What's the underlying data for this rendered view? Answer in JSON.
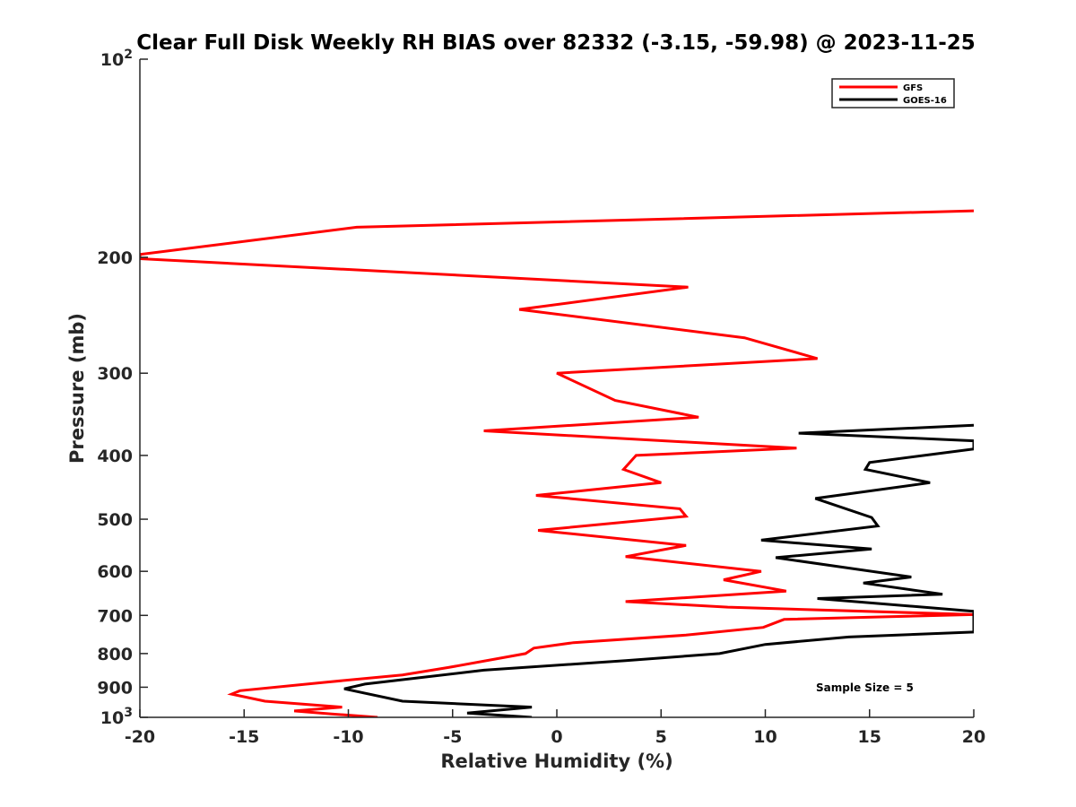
{
  "chart_data": {
    "type": "line",
    "title": "Clear Full Disk Weekly RH BIAS over 82332 (-3.15, -59.98) @ 2023-11-25",
    "xlabel": "Relative Humidity (%)",
    "ylabel": "Pressure (mb)",
    "xlim": [
      -20,
      20
    ],
    "ylim": [
      100,
      1000
    ],
    "y_scale": "log",
    "y_reversed": true,
    "grid": false,
    "legend_position": "top-right",
    "x_ticks": [
      "-20",
      "-15",
      "-10",
      "-5",
      "0",
      "5",
      "10",
      "15",
      "20"
    ],
    "y_ticks": [
      {
        "value": 100,
        "base": "10",
        "exp": "2"
      },
      {
        "value": 200,
        "label": "200"
      },
      {
        "value": 300,
        "label": "300"
      },
      {
        "value": 400,
        "label": "400"
      },
      {
        "value": 500,
        "label": "500"
      },
      {
        "value": 600,
        "label": "600"
      },
      {
        "value": 700,
        "label": "700"
      },
      {
        "value": 800,
        "label": "800"
      },
      {
        "value": 900,
        "label": "900"
      },
      {
        "value": 1000,
        "base": "10",
        "exp": "3"
      }
    ],
    "annotation": "Sample Size = 5",
    "series": [
      {
        "name": "GFS",
        "color": "#ff0000",
        "points": [
          [
            20,
            170
          ],
          [
            -9.6,
            180
          ],
          [
            -20,
            198
          ],
          [
            -20,
            201
          ],
          [
            6.3,
            222
          ],
          [
            -1.8,
            240
          ],
          [
            9,
            265
          ],
          [
            12.5,
            285
          ],
          [
            0,
            300
          ],
          [
            2.8,
            330
          ],
          [
            6.8,
            350
          ],
          [
            -3.5,
            367
          ],
          [
            11.5,
            390
          ],
          [
            3.8,
            400
          ],
          [
            3.2,
            420
          ],
          [
            5,
            440
          ],
          [
            -1,
            460
          ],
          [
            5.9,
            482
          ],
          [
            6.2,
            495
          ],
          [
            -0.9,
            520
          ],
          [
            6.2,
            548
          ],
          [
            3.3,
            570
          ],
          [
            9.8,
            600
          ],
          [
            8,
            618
          ],
          [
            11,
            643
          ],
          [
            3.3,
            667
          ],
          [
            8.2,
            680
          ],
          [
            20,
            698
          ],
          [
            10.9,
            710
          ],
          [
            9.9,
            730
          ],
          [
            6.2,
            750
          ],
          [
            0.8,
            770
          ],
          [
            -1.1,
            785
          ],
          [
            -1.5,
            800
          ],
          [
            -5.2,
            840
          ],
          [
            -7.4,
            862
          ],
          [
            -11.2,
            885
          ],
          [
            -15.2,
            911
          ],
          [
            -15.6,
            922
          ],
          [
            -14,
            945
          ],
          [
            -10.3,
            965
          ],
          [
            -12.6,
            978
          ],
          [
            -10.8,
            988
          ],
          [
            -8.6,
            1000
          ]
        ]
      },
      {
        "name": "GOES-16",
        "color": "#000000",
        "points": [
          [
            20,
            360
          ],
          [
            11.6,
            370
          ],
          [
            20,
            380
          ],
          [
            20,
            391
          ],
          [
            15,
            410
          ],
          [
            14.8,
            420
          ],
          [
            17.9,
            440
          ],
          [
            12.4,
            465
          ],
          [
            15.1,
            497
          ],
          [
            15.4,
            512
          ],
          [
            9.8,
            538
          ],
          [
            15.1,
            555
          ],
          [
            10.5,
            572
          ],
          [
            17,
            612
          ],
          [
            14.7,
            625
          ],
          [
            18.5,
            650
          ],
          [
            12.5,
            660
          ],
          [
            20,
            690
          ],
          [
            20,
            742
          ],
          [
            14,
            755
          ],
          [
            10,
            775
          ],
          [
            7.8,
            800
          ],
          [
            3.3,
            820
          ],
          [
            -3.5,
            848
          ],
          [
            -9.2,
            890
          ],
          [
            -10.2,
            905
          ],
          [
            -7.4,
            945
          ],
          [
            -1.2,
            965
          ],
          [
            -4.3,
            985
          ],
          [
            -1.2,
            1000
          ]
        ]
      }
    ]
  }
}
